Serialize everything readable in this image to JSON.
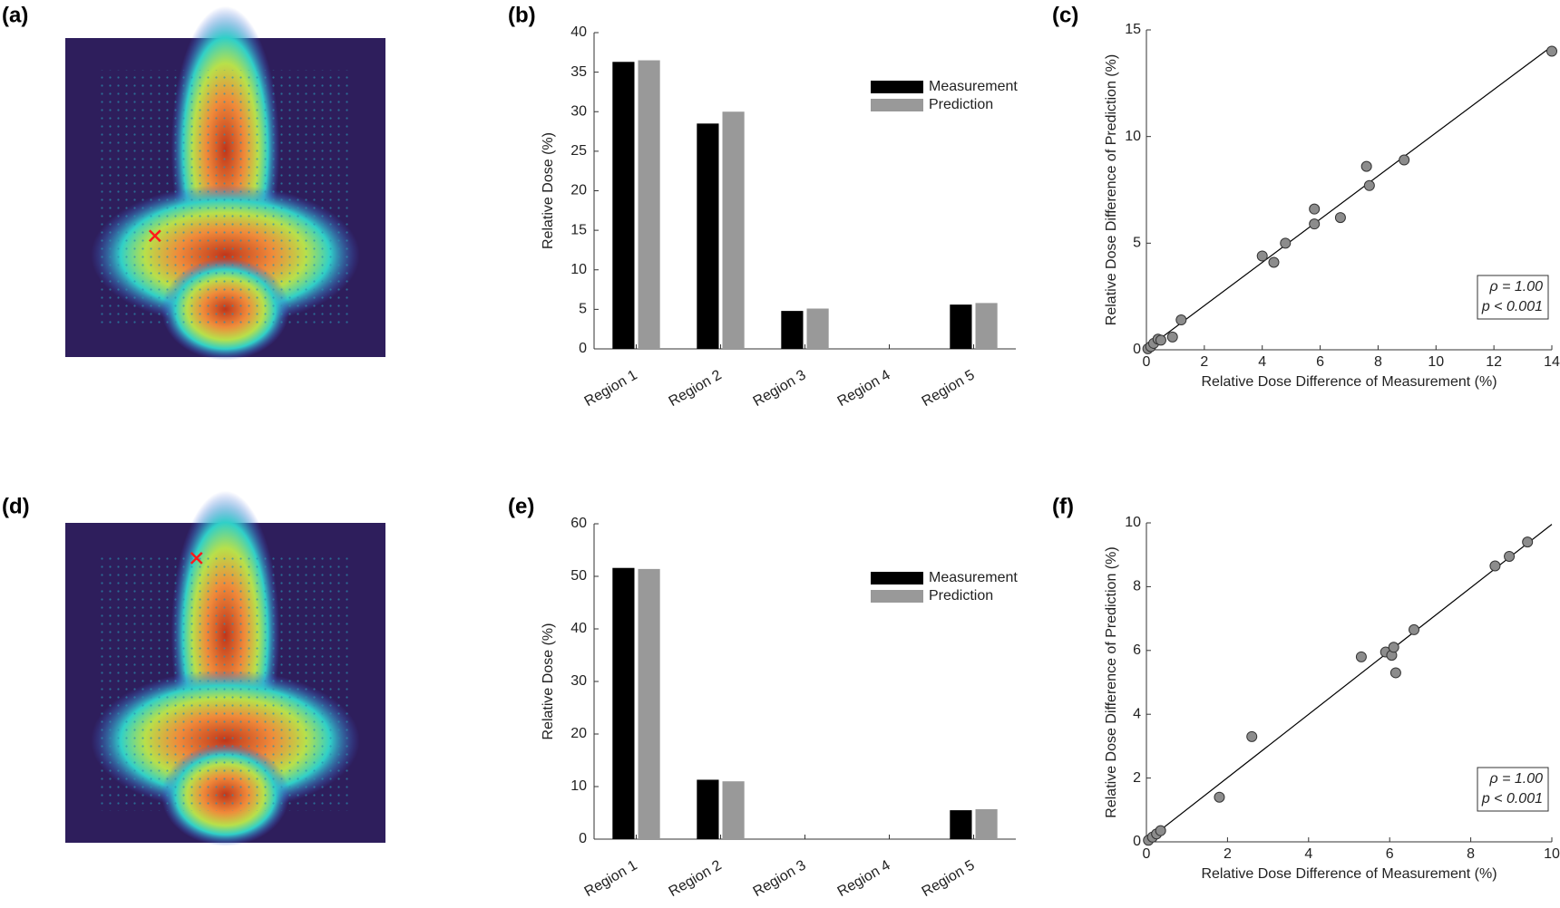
{
  "chart_data": [
    {
      "type": "image",
      "panel_label": "(a)"
    },
    {
      "type": "bar",
      "panel_label": "(b)",
      "ylabel": "Relative Dose (%)",
      "categories": [
        "Region 1",
        "Region 2",
        "Region 3",
        "Region 4",
        "Region 5"
      ],
      "series": [
        {
          "name": "Measurement",
          "color": "#000000",
          "values": [
            36.3,
            28.5,
            4.8,
            0,
            5.6
          ]
        },
        {
          "name": "Prediction",
          "color": "#999999",
          "values": [
            36.5,
            30.0,
            5.1,
            0,
            5.8
          ]
        }
      ],
      "ylim": [
        0,
        40
      ],
      "yticks": [
        0,
        5,
        10,
        15,
        20,
        25,
        30,
        35,
        40
      ],
      "legend": "upper right"
    },
    {
      "type": "scatter",
      "panel_label": "(c)",
      "xlabel": "Relative Dose Difference of Measurement (%)",
      "ylabel": "Relative Dose Difference of Prediction (%)",
      "x": [
        0.05,
        0.15,
        0.25,
        0.4,
        0.5,
        0.9,
        1.2,
        4.0,
        4.4,
        4.8,
        5.8,
        5.8,
        6.7,
        7.6,
        7.7,
        8.9,
        14
      ],
      "values": [
        0.05,
        0.15,
        0.3,
        0.5,
        0.45,
        0.6,
        1.4,
        4.4,
        4.1,
        5.0,
        6.6,
        5.9,
        6.2,
        8.6,
        7.7,
        8.9,
        14
      ],
      "color": "#8c8c8c",
      "xlim": [
        0,
        14
      ],
      "xticks": [
        0,
        2,
        4,
        6,
        8,
        10,
        12,
        14
      ],
      "ylim": [
        0,
        15
      ],
      "yticks": [
        0,
        5,
        10,
        15
      ],
      "annotations": [
        "ρ = 1.00",
        "p < 0.001"
      ]
    },
    {
      "type": "image",
      "panel_label": "(d)"
    },
    {
      "type": "bar",
      "panel_label": "(e)",
      "ylabel": "Relative Dose (%)",
      "categories": [
        "Region 1",
        "Region 2",
        "Region 3",
        "Region 4",
        "Region 5"
      ],
      "series": [
        {
          "name": "Measurement",
          "color": "#000000",
          "values": [
            51.6,
            11.3,
            0,
            0,
            5.5
          ]
        },
        {
          "name": "Prediction",
          "color": "#999999",
          "values": [
            51.4,
            11.0,
            0,
            0,
            5.7
          ]
        }
      ],
      "ylim": [
        0,
        60
      ],
      "yticks": [
        0,
        10,
        20,
        30,
        40,
        50,
        60
      ],
      "legend": "upper right"
    },
    {
      "type": "scatter",
      "panel_label": "(f)",
      "xlabel": "Relative Dose Difference of Measurement (%)",
      "ylabel": "Relative Dose Difference of Prediction (%)",
      "x": [
        0.05,
        0.15,
        0.25,
        0.35,
        1.8,
        2.6,
        5.3,
        5.9,
        6.05,
        6.1,
        6.15,
        6.6,
        8.6,
        8.95,
        9.4
      ],
      "values": [
        0.05,
        0.15,
        0.25,
        0.35,
        1.4,
        3.3,
        5.8,
        5.95,
        5.85,
        6.1,
        5.3,
        6.65,
        8.65,
        8.95,
        9.4
      ],
      "color": "#8c8c8c",
      "xlim": [
        0,
        10
      ],
      "xticks": [
        0,
        2,
        4,
        6,
        8,
        10
      ],
      "ylim": [
        0,
        10
      ],
      "yticks": [
        0,
        2,
        4,
        6,
        8,
        10
      ],
      "annotations": [
        "ρ = 1.00",
        "p < 0.001"
      ]
    }
  ]
}
